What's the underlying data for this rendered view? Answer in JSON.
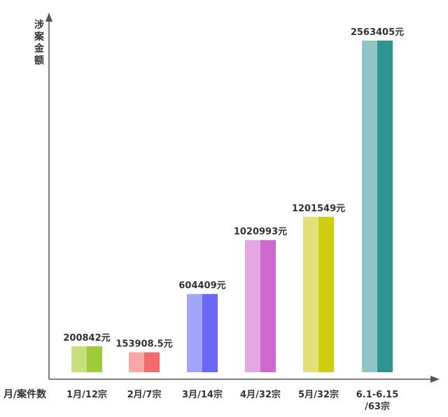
{
  "chart_data": {
    "type": "bar",
    "ylabel": "涉案金额",
    "xlabel": "月/案件数",
    "ylim": [
      0,
      2700000
    ],
    "grid": false,
    "categories": [
      {
        "lines": [
          "1月/12宗"
        ]
      },
      {
        "lines": [
          "2月/7宗"
        ]
      },
      {
        "lines": [
          "3月/14宗"
        ]
      },
      {
        "lines": [
          "4月/32宗"
        ]
      },
      {
        "lines": [
          "5月/32宗"
        ]
      },
      {
        "lines": [
          "6.1-6.15",
          "/63宗"
        ]
      }
    ],
    "values": [
      200842,
      153908.5,
      604409,
      1020993,
      1201549,
      2563405
    ],
    "value_labels": [
      "200842元",
      "153908.5元",
      "604409元",
      "1020993元",
      "1201549元",
      "2563405元"
    ],
    "colors": [
      {
        "light": "#c5e07f",
        "dark": "#9dcb3a"
      },
      {
        "light": "#f8a7a7",
        "dark": "#f06b6b"
      },
      {
        "light": "#a2a4f8",
        "dark": "#6a67f6"
      },
      {
        "light": "#e5a7e2",
        "dark": "#cf67cf"
      },
      {
        "light": "#e3e07c",
        "dark": "#cfcf12"
      },
      {
        "light": "#8fc6c5",
        "dark": "#2f9591"
      }
    ]
  }
}
